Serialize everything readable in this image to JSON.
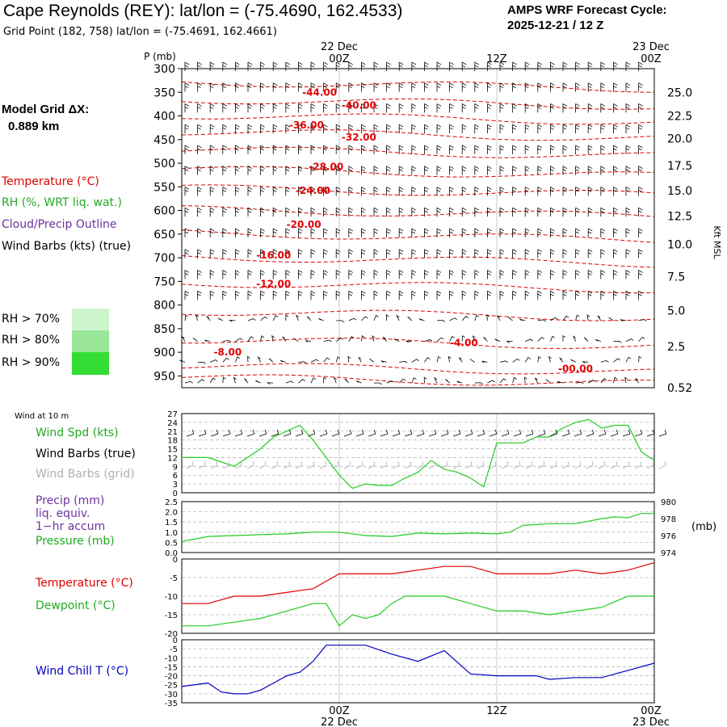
{
  "header": {
    "title": "Cape Reynolds (REY):  lat/lon = (-75.4690, 162.4533)",
    "subtitle": "Grid Point (182, 758) lat/lon = (-75.4691, 162.4661)",
    "cycle_line1": "AMPS WRF Forecast Cycle:",
    "cycle_line2": "2025-12-21 / 12  Z"
  },
  "left_panel": {
    "model_grid_label": "Model Grid ΔX:",
    "model_grid_value": "0.889 km",
    "legend_temperature": "Temperature (°C)",
    "legend_rh": "RH (%, WRT liq. wat.)",
    "legend_cloud": "Cloud/Precip Outline",
    "legend_wind": "Wind Barbs (kts) (true)",
    "rh_70": "RH > 70%",
    "rh_80": "RH > 80%",
    "rh_90": "RH > 90%",
    "wind_at_10m": "Wind at 10 m",
    "wind_spd": "Wind Spd (kts)",
    "wind_barbs_true": "Wind Barbs (true)",
    "wind_barbs_grid": "Wind Barbs (grid)",
    "precip": "Precip (mm)",
    "liq_equiv": "liq. equiv.",
    "accum": "1−hr accum",
    "pressure": "Pressure (mb)",
    "temperature": "Temperature (°C)",
    "dewpoint": "Dewpoint (°C)",
    "wind_chill": "Wind Chill T (°C)"
  },
  "colors": {
    "temperature": "#e00000",
    "rh_green": "#22cc22",
    "cloud": "#7030a0",
    "wind_chill": "#0000c0",
    "grid_barbs": "#b0b0b0",
    "rh70": "#ccf5cc",
    "rh80": "#99e699",
    "rh90": "#33dd33"
  },
  "time_axis": {
    "top_labels": [
      {
        "date": "22 Dec",
        "hour": "00Z"
      },
      {
        "date": "",
        "hour": "12Z"
      },
      {
        "date": "23 Dec",
        "hour": "00Z"
      }
    ],
    "bottom_labels": [
      {
        "hour": "00Z",
        "date": "22 Dec"
      },
      {
        "hour": "12Z",
        "date": ""
      },
      {
        "hour": "00Z",
        "date": "23 Dec"
      }
    ],
    "hours": [
      0,
      12,
      24,
      36
    ]
  },
  "chart_data": [
    {
      "type": "line",
      "panel": "cross-section",
      "y_axis_label": "P (mb)",
      "y_ticks": [
        "300",
        "350",
        "400",
        "450",
        "500",
        "550",
        "600",
        "650",
        "700",
        "750",
        "800",
        "850",
        "900",
        "950"
      ],
      "right_axis_label": "Kft MSL",
      "right_ticks": [
        {
          "label": "25.0",
          "p": 350
        },
        {
          "label": "22.5",
          "p": 400
        },
        {
          "label": "20.0",
          "p": 448
        },
        {
          "label": "17.5",
          "p": 505
        },
        {
          "label": "15.0",
          "p": 558
        },
        {
          "label": "12.5",
          "p": 612
        },
        {
          "label": "10.0",
          "p": 672
        },
        {
          "label": "7.5",
          "p": 740
        },
        {
          "label": "5.0",
          "p": 812
        },
        {
          "label": "2.5",
          "p": 888
        },
        {
          "label": "0.52",
          "p": 975
        }
      ],
      "isotherm_labels": [
        {
          "text": "-44.00",
          "hour": 10.5,
          "p": 350
        },
        {
          "text": "-40.00",
          "hour": 13.5,
          "p": 378
        },
        {
          "text": "-36.00",
          "hour": 9.5,
          "p": 420
        },
        {
          "text": "-32.00",
          "hour": 13.5,
          "p": 445
        },
        {
          "text": "-28.00",
          "hour": 11.0,
          "p": 508
        },
        {
          "text": "-24.00",
          "hour": 10.0,
          "p": 558
        },
        {
          "text": "-20.00",
          "hour": 9.3,
          "p": 630
        },
        {
          "text": "-16.00",
          "hour": 7.0,
          "p": 695
        },
        {
          "text": "-12.00",
          "hour": 7.0,
          "p": 755
        },
        {
          "text": "-8.00",
          "hour": 3.5,
          "p": 900
        },
        {
          "text": "-4.00",
          "hour": 21.5,
          "p": 880
        },
        {
          "text": "-00.00",
          "hour": 30.0,
          "p": 935
        }
      ]
    },
    {
      "type": "line",
      "panel": "wind",
      "y_ticks": [
        "27",
        "24",
        "21",
        "18",
        "15",
        "12",
        "9",
        "6",
        "3",
        "0"
      ],
      "ylim": [
        0,
        27
      ],
      "series": [
        {
          "name": "Wind Spd (kts)",
          "x": [
            0,
            2,
            4,
            6,
            7,
            8,
            9,
            10,
            11,
            12,
            13,
            14,
            15,
            16,
            17,
            18,
            19,
            20,
            21,
            22,
            23,
            24,
            25,
            26,
            27,
            28,
            29,
            30,
            31,
            32,
            33,
            34,
            35,
            36
          ],
          "values": [
            12,
            12,
            9,
            15,
            19,
            21,
            23,
            18,
            12,
            6,
            1.5,
            3,
            2.5,
            2.5,
            5,
            7,
            11,
            8,
            7,
            5,
            2,
            17,
            17,
            17,
            19,
            19,
            22,
            24,
            25,
            22,
            23,
            23,
            14,
            11
          ]
        }
      ]
    },
    {
      "type": "line",
      "panel": "precip-pressure",
      "y_ticks": [
        "2.5",
        "2.0",
        "1.5",
        "1.0",
        "0.5",
        "0.0"
      ],
      "ylim": [
        0,
        2.5
      ],
      "right_ticks": [
        "980",
        "978",
        "976",
        "974"
      ],
      "right_ylim": [
        974,
        980
      ],
      "series": [
        {
          "name": "Pressure (mb)",
          "x": [
            0,
            2,
            4,
            6,
            8,
            10,
            12,
            14,
            16,
            18,
            20,
            22,
            24,
            25,
            26,
            27,
            28,
            30,
            32,
            33,
            34,
            35,
            36
          ],
          "values": [
            975.3,
            975.9,
            976.0,
            976.1,
            976.2,
            976.4,
            976.4,
            976.0,
            975.9,
            976.3,
            976.2,
            976.3,
            976.2,
            976.4,
            977.2,
            977.3,
            977.4,
            977.4,
            978.0,
            978.2,
            978.1,
            978.6,
            978.6
          ]
        }
      ]
    },
    {
      "type": "line",
      "panel": "temperature",
      "y_ticks": [
        "0",
        "-5",
        "-10",
        "-15",
        "-20"
      ],
      "ylim": [
        -20,
        0
      ],
      "series": [
        {
          "name": "Temperature (°C)",
          "x": [
            0,
            2,
            4,
            6,
            8,
            10,
            12,
            14,
            16,
            18,
            20,
            22,
            24,
            26,
            28,
            30,
            32,
            34,
            36
          ],
          "values": [
            -12,
            -12,
            -10,
            -10,
            -9,
            -8,
            -4,
            -4,
            -4,
            -3,
            -2,
            -2,
            -4,
            -4,
            -4,
            -3,
            -4,
            -3,
            -1
          ]
        },
        {
          "name": "Dewpoint (°C)",
          "x": [
            0,
            2,
            4,
            6,
            8,
            10,
            11,
            12,
            13,
            14,
            15,
            16,
            17,
            18,
            19,
            20,
            22,
            24,
            26,
            28,
            30,
            32,
            34,
            36
          ],
          "values": [
            -18,
            -18,
            -17,
            -16,
            -14,
            -12,
            -12,
            -18,
            -15,
            -16,
            -15,
            -12,
            -10,
            -10,
            -10,
            -10,
            -12,
            -14,
            -14,
            -15,
            -14,
            -13,
            -10,
            -10
          ]
        }
      ]
    },
    {
      "type": "line",
      "panel": "wind-chill",
      "y_ticks": [
        "0",
        "-5",
        "-10",
        "-15",
        "-20",
        "-25",
        "-30",
        "-35"
      ],
      "ylim": [
        -35,
        0
      ],
      "series": [
        {
          "name": "Wind Chill T (°C)",
          "x": [
            0,
            2,
            3,
            4,
            5,
            6,
            7,
            8,
            9,
            10,
            11,
            12,
            14,
            16,
            18,
            20,
            22,
            24,
            26,
            27,
            28,
            30,
            32,
            34,
            36
          ],
          "values": [
            -26,
            -24,
            -29,
            -30,
            -30,
            -28,
            -24,
            -20,
            -18,
            -12,
            -3,
            -3,
            -3,
            -8,
            -12,
            -6,
            -19,
            -20,
            -20,
            -20,
            -22,
            -21,
            -21,
            -17,
            -13
          ]
        }
      ]
    }
  ]
}
